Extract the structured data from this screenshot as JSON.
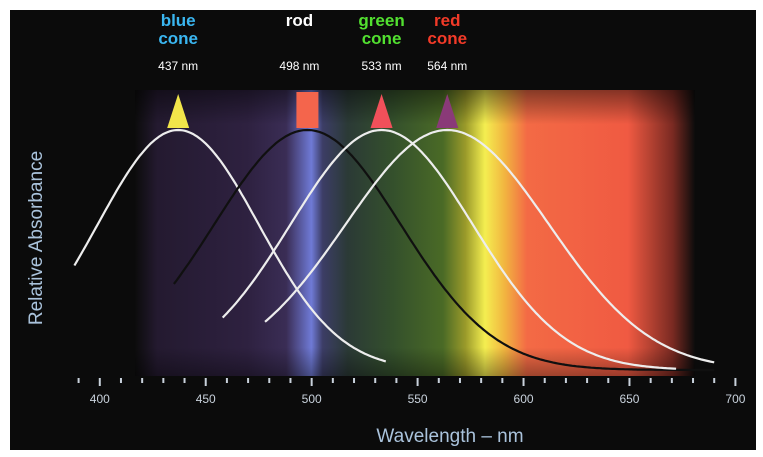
{
  "chart_data": {
    "type": "line",
    "xlabel": "Wavelength – nm",
    "ylabel": "Relative Absorbance",
    "xlim": [
      385,
      705
    ],
    "ylim": [
      0,
      1
    ],
    "x_ticks": [
      400,
      450,
      500,
      550,
      600,
      650,
      700
    ],
    "series": [
      {
        "name": "blue cone",
        "line1": "blue",
        "line2": "cone",
        "peak_label": "437 nm",
        "peak": 437,
        "sigma": 38,
        "x_range": [
          388,
          535
        ],
        "color": "#ededed",
        "label_color": "#3ab6f0",
        "marker": "triangle",
        "marker_color": "#f2e54a"
      },
      {
        "name": "rod",
        "line1": "rod",
        "line2": "",
        "peak_label": "498 nm",
        "peak": 498,
        "sigma": 44,
        "x_range": [
          435,
          690
        ],
        "color": "#101010",
        "label_color": "#ffffff",
        "marker": "square",
        "marker_color": "#f4654c"
      },
      {
        "name": "green cone",
        "line1": "green",
        "line2": "cone",
        "peak_label": "533 nm",
        "peak": 533,
        "sigma": 43,
        "x_range": [
          458,
          672
        ],
        "color": "#ededed",
        "label_color": "#52e030",
        "marker": "triangle",
        "marker_color": "#f0505a"
      },
      {
        "name": "red cone",
        "line1": "red",
        "line2": "cone",
        "peak_label": "564 nm",
        "peak": 564,
        "sigma": 48,
        "x_range": [
          478,
          690
        ],
        "color": "#ededed",
        "label_color": "#f23a28",
        "marker": "triangle",
        "marker_color": "#8a3a78"
      }
    ]
  }
}
